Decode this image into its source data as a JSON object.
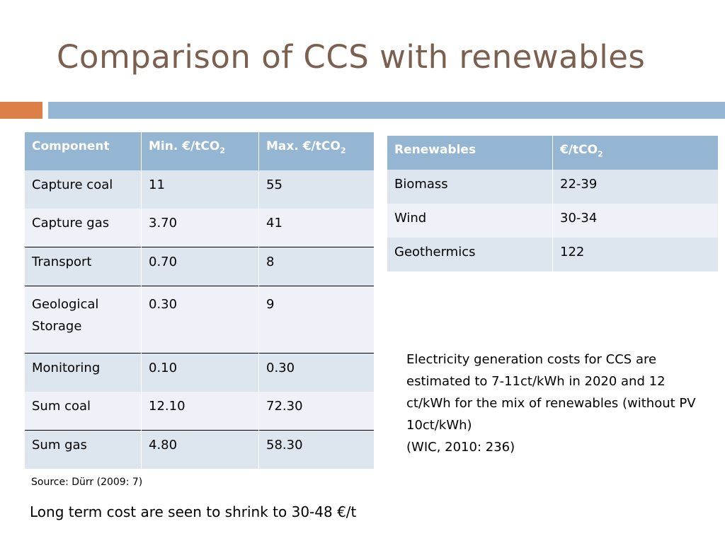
{
  "slide": {
    "title": "Comparison of CCS with renewables",
    "accent_colors": {
      "title": "#7b5f4f",
      "orange": "#dd8047",
      "blue": "#94b6d2"
    }
  },
  "ccs_table": {
    "headers": {
      "component": "Component",
      "min_prefix": "Min. €/tCO",
      "max_prefix": "Max. €/tCO",
      "subscript": "2"
    },
    "rows": [
      {
        "component": "Capture coal",
        "min": "11",
        "max": "55"
      },
      {
        "component": "Capture gas",
        "min": "3.70",
        "max": "41"
      },
      {
        "component": "Transport",
        "min": "0.70",
        "max": "8"
      },
      {
        "component": "Geological Storage",
        "min": "0.30",
        "max": "9"
      },
      {
        "component": "Monitoring",
        "min": "0.10",
        "max": "0.30"
      },
      {
        "component": "Sum coal",
        "min": "12.10",
        "max": "72.30"
      },
      {
        "component": "Sum gas",
        "min": "4.80",
        "max": "58.30"
      }
    ]
  },
  "renewables_table": {
    "headers": {
      "renewables": "Renewables",
      "cost_prefix": "€/tCO",
      "subscript": "2"
    },
    "rows": [
      {
        "name": "Biomass",
        "cost": "22-39"
      },
      {
        "name": "Wind",
        "cost": "30-34"
      },
      {
        "name": "Geothermics",
        "cost": "122"
      }
    ]
  },
  "note": {
    "text": "Electricity generation  costs for CCS are estimated to 7-11ct/kWh in 2020 and 12 ct/kWh for the mix of renewables (without PV 10ct/kWh)",
    "citation": "(WIC, 2010: 236)"
  },
  "source": "Source: Dürr (2009: 7)",
  "long_term": "Long term cost are seen to shrink to 30-48 €/t"
}
